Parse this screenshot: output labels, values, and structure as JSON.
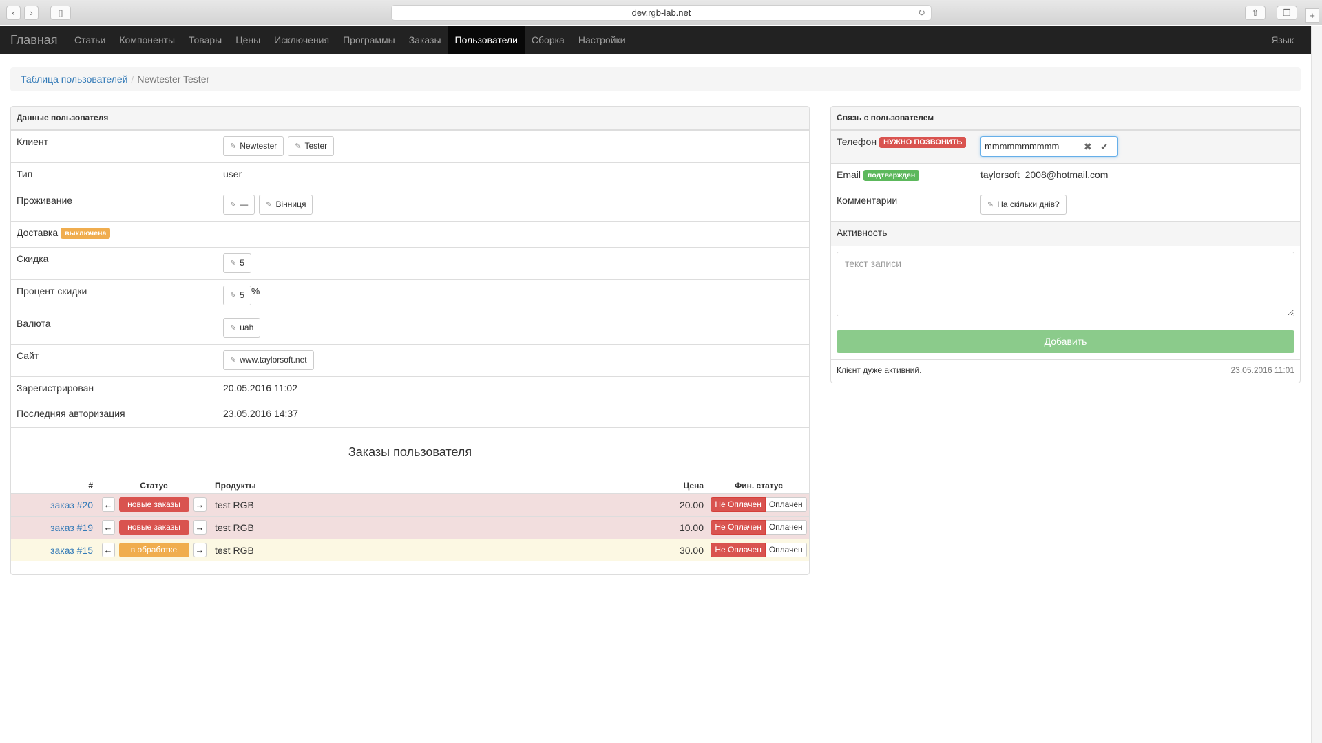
{
  "browser": {
    "url": "dev.rgb-lab.net"
  },
  "nav": {
    "brand": "Главная",
    "items": [
      "Статьи",
      "Компоненты",
      "Товары",
      "Цены",
      "Исключения",
      "Программы",
      "Заказы",
      "Пользователи",
      "Сборка",
      "Настройки"
    ],
    "active": "Пользователи",
    "lang": "Язык"
  },
  "breadcrumb": {
    "parent": "Таблица пользователей",
    "current": "Newtester Tester"
  },
  "user": {
    "title": "Данные пользователя",
    "client_label": "Клиент",
    "first_name": "Newtester",
    "last_name": "Tester",
    "type_label": "Тип",
    "type": "user",
    "residence_label": "Проживание",
    "country": "—",
    "city": "Вінниця",
    "delivery_label": "Доставка",
    "delivery_badge": "выключена",
    "discount_label": "Скидка",
    "discount": "5",
    "discount_pct_label": "Процент скидки",
    "discount_pct": "5",
    "pct_sign": "%",
    "currency_label": "Валюта",
    "currency": "uah",
    "site_label": "Сайт",
    "site": "www.taylorsoft.net",
    "registered_label": "Зарегистрирован",
    "registered": "20.05.2016 11:02",
    "last_auth_label": "Последняя авторизация",
    "last_auth": "23.05.2016 14:37"
  },
  "orders": {
    "title": "Заказы пользователя",
    "headers": {
      "num": "#",
      "status": "Статус",
      "products": "Продукты",
      "price": "Цена",
      "fin": "Фин. статус"
    },
    "rows": [
      {
        "order": "заказ #20",
        "status": "новые заказы",
        "product": "test RGB",
        "price": "20.00",
        "unpaid": "Не Оплачен",
        "paid": "Оплачен"
      },
      {
        "order": "заказ #19",
        "status": "новые заказы",
        "product": "test RGB",
        "price": "10.00",
        "unpaid": "Не Оплачен",
        "paid": "Оплачен"
      },
      {
        "order": "заказ #15",
        "status": "в обработке",
        "product": "test RGB",
        "price": "30.00",
        "unpaid": "Не Оплачен",
        "paid": "Оплачен"
      }
    ]
  },
  "contact": {
    "title": "Связь с пользователем",
    "phone_label": "Телефон",
    "phone_badge": "НУЖНО ПОЗВОНИТЬ",
    "phone_value": "mmmmmmmmmm",
    "email_label": "Email",
    "email_badge": "подтвержден",
    "email": "taylorsoft_2008@hotmail.com",
    "comments_label": "Комментарии",
    "comment": "На скільки днів?",
    "activity_label": "Активность",
    "activity_placeholder": "текст записи",
    "add_button": "Добавить",
    "note": "Клієнт дуже активний.",
    "note_date": "23.05.2016 11:01"
  },
  "colors": {
    "danger": "#d9534f",
    "warning": "#f0ad4e",
    "success": "#5cb85c",
    "link": "#337ab7"
  }
}
